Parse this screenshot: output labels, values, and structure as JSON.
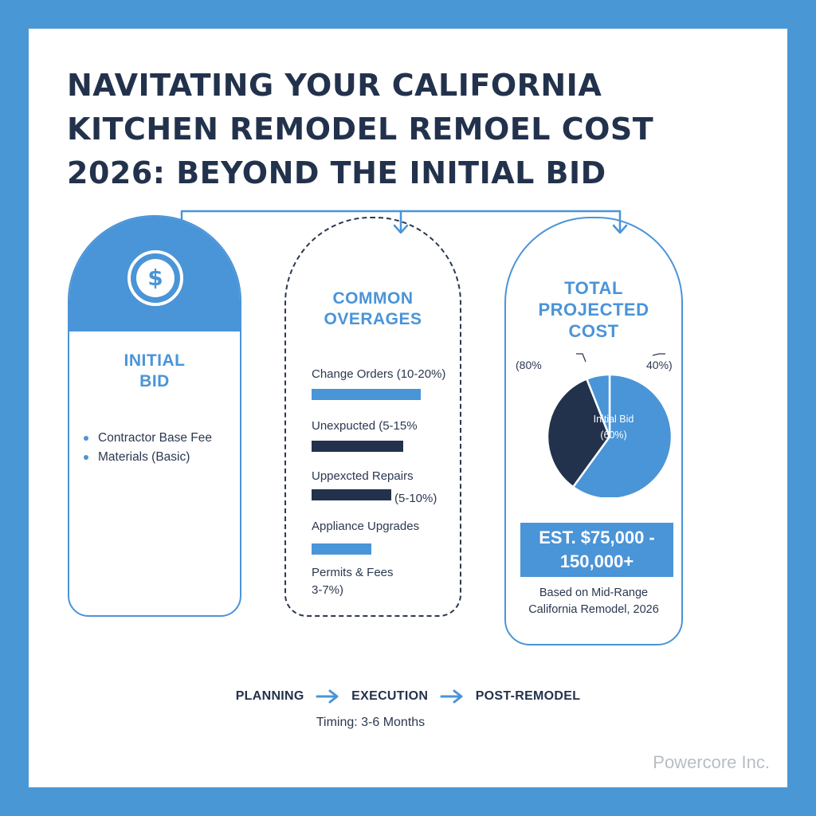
{
  "title": {
    "line1": "NAVITATING YOUR CALIFORNIA",
    "line2": "KITCHEN REMODEL REMOEL COST",
    "line3": "2026: BEYOND THE INITIAL BID"
  },
  "panels": {
    "initial_bid": {
      "icon": "dollar-circle-icon",
      "icon_glyph": "$",
      "label_line1": "INITIAL",
      "label_line2": "BID",
      "items": [
        "Contractor Base Fee",
        "Materials (Basic)"
      ]
    },
    "overages": {
      "label_line1": "COMMON",
      "label_line2": "OVERAGES",
      "items": [
        {
          "label": "Change Orders (10-20%)",
          "bar_fraction": 0.75,
          "bar_color": "#4a94d8"
        },
        {
          "label": "Unexpucted (5-15%",
          "bar_fraction": 0.63,
          "bar_color": "#23324c"
        },
        {
          "label": "Uppexcted Repairs",
          "label_right": "(5-10%)",
          "bar_fraction": 0.55,
          "bar_color": "#23324c"
        },
        {
          "label": "Appliance Upgrades",
          "bar_fraction": 0.41,
          "bar_color": "#4a94d8"
        },
        {
          "label": "Permits & Fees",
          "label2": "3-7%)"
        }
      ]
    },
    "total": {
      "label_line1": "TOTAL",
      "label_line2": "PROJECTED",
      "label_line3": "COST",
      "callout_left": "(80%",
      "callout_right": "40%)",
      "estimate_line1": "EST. $75,000 -",
      "estimate_line2": "150,000+",
      "basis_line1": "Based on Mid-Range",
      "basis_line2": "California Remodel, 2026"
    }
  },
  "chart_data": {
    "type": "pie",
    "slices": [
      {
        "label": "Initial Bid (60%)",
        "value": 60,
        "color": "#4a94d8"
      },
      {
        "label": "",
        "value": 34,
        "color": "#23324c"
      },
      {
        "label": "",
        "value": 6,
        "color": "#4a94d8"
      }
    ]
  },
  "timeline": {
    "stages": [
      "PLANNING",
      "EXECUTION",
      "POST-REMODEL"
    ],
    "timing": "Timing: 3-6 Months"
  },
  "brand": "Powercore Inc.",
  "colors": {
    "accent": "#4a94d8",
    "navy": "#23324c",
    "frame": "#4a97d6"
  }
}
